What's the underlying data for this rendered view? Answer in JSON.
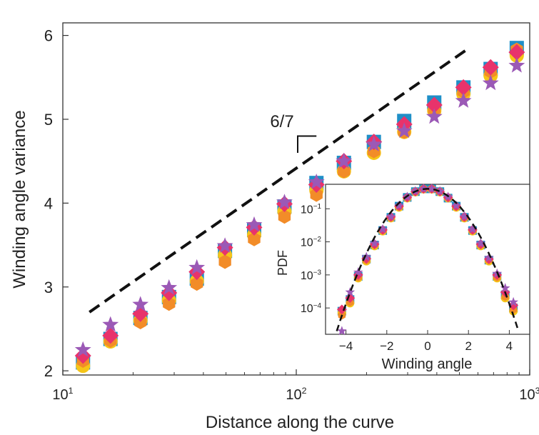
{
  "chart_data": [
    {
      "type": "scatter",
      "xscale": "log",
      "xlim": [
        10,
        1000
      ],
      "ylim": [
        1.95,
        6.15
      ],
      "xlabel": "Distance along the curve",
      "ylabel": "Winding angle variance",
      "xticks": [
        {
          "value": 10,
          "base": "10",
          "exp": "1"
        },
        {
          "value": 100,
          "base": "10",
          "exp": "2"
        },
        {
          "value": 1000,
          "base": "10",
          "exp": "3"
        }
      ],
      "yticks": [
        2,
        3,
        4,
        5,
        6
      ],
      "x": [
        12.2,
        16.0,
        21.5,
        28.5,
        37.5,
        49.5,
        66.0,
        89.0,
        122,
        160,
        215,
        290,
        390,
        520,
        680,
        880
      ],
      "series": [
        {
          "marker": "square",
          "color": "#1f8fc8",
          "values": [
            2.1,
            2.38,
            2.63,
            2.88,
            3.1,
            3.43,
            3.68,
            3.96,
            4.24,
            4.48,
            4.73,
            4.98,
            5.2,
            5.38,
            5.6,
            5.85
          ]
        },
        {
          "marker": "circle",
          "color": "#f5c518",
          "values": [
            2.06,
            2.35,
            2.6,
            2.84,
            3.07,
            3.38,
            3.62,
            3.9,
            4.15,
            4.38,
            4.6,
            4.85,
            5.1,
            5.3,
            5.52,
            5.76
          ]
        },
        {
          "marker": "hexagon",
          "color": "#f28c28",
          "values": [
            2.12,
            2.36,
            2.58,
            2.8,
            3.04,
            3.3,
            3.57,
            3.84,
            4.1,
            4.38,
            4.62,
            4.85,
            5.12,
            5.33,
            5.57,
            5.83
          ]
        },
        {
          "marker": "diamond",
          "color": "#e8336b",
          "values": [
            2.18,
            2.42,
            2.68,
            2.93,
            3.18,
            3.47,
            3.71,
            3.99,
            4.22,
            4.5,
            4.73,
            4.94,
            5.17,
            5.38,
            5.62,
            5.8
          ]
        },
        {
          "marker": "star",
          "color": "#9b59b6",
          "values": [
            2.25,
            2.55,
            2.79,
            2.99,
            3.23,
            3.49,
            3.74,
            4.01,
            4.25,
            4.5,
            4.7,
            4.86,
            5.03,
            5.22,
            5.43,
            5.64
          ]
        }
      ],
      "guide_line": {
        "slope_label": "6/7",
        "x": [
          13,
          550
        ],
        "y": [
          2.7,
          5.85
        ]
      }
    },
    {
      "type": "scatter",
      "yscale": "log",
      "xlim": [
        -5,
        5
      ],
      "ylim": [
        1.6e-05,
        0.55
      ],
      "xlabel": "Winding angle",
      "ylabel": "PDF",
      "xticks": [
        -4,
        -2,
        0,
        2,
        4
      ],
      "yticks": [
        {
          "value": 0.1,
          "base": "10",
          "exp": "−1"
        },
        {
          "value": 0.01,
          "base": "10",
          "exp": "−2"
        },
        {
          "value": 0.001,
          "base": "10",
          "exp": "−3"
        },
        {
          "value": 0.0001,
          "base": "10",
          "exp": "−4"
        }
      ],
      "x": [
        -4.2,
        -3.8,
        -3.4,
        -3.0,
        -2.6,
        -2.2,
        -1.8,
        -1.4,
        -1.0,
        -0.6,
        -0.2,
        0.2,
        0.6,
        1.0,
        1.4,
        1.8,
        2.2,
        2.6,
        3.0,
        3.4,
        3.8,
        4.2
      ],
      "series": [
        {
          "marker": "square",
          "color": "#1f8fc8",
          "values": [
            8e-05,
            0.00018,
            0.0009,
            0.003,
            0.008,
            0.022,
            0.055,
            0.12,
            0.22,
            0.33,
            0.4,
            0.4,
            0.33,
            0.21,
            0.12,
            0.055,
            0.022,
            0.008,
            0.0028,
            0.0009,
            0.00025,
            0.0001
          ]
        },
        {
          "marker": "circle",
          "color": "#f5c518",
          "values": [
            7e-05,
            0.00014,
            0.0008,
            0.0026,
            0.0075,
            0.021,
            0.052,
            0.11,
            0.21,
            0.32,
            0.39,
            0.39,
            0.32,
            0.21,
            0.11,
            0.052,
            0.021,
            0.0075,
            0.0026,
            0.0008,
            0.0002,
            8e-05
          ]
        },
        {
          "marker": "hexagon",
          "color": "#f28c28",
          "values": [
            6e-05,
            0.00015,
            0.00085,
            0.0028,
            0.008,
            0.022,
            0.054,
            0.115,
            0.22,
            0.33,
            0.4,
            0.4,
            0.33,
            0.22,
            0.115,
            0.054,
            0.022,
            0.008,
            0.0028,
            0.00085,
            0.00022,
            9e-05
          ]
        },
        {
          "marker": "diamond",
          "color": "#e8336b",
          "values": [
            9e-05,
            0.0002,
            0.001,
            0.0031,
            0.0085,
            0.023,
            0.057,
            0.12,
            0.22,
            0.33,
            0.4,
            0.4,
            0.33,
            0.22,
            0.12,
            0.057,
            0.023,
            0.0085,
            0.003,
            0.001,
            0.0003,
            0.00012
          ]
        },
        {
          "marker": "star",
          "color": "#9b59b6",
          "values": [
            2e-05,
            0.0003,
            0.0012,
            0.0035,
            0.009,
            0.024,
            0.058,
            0.125,
            0.23,
            0.34,
            0.4,
            0.4,
            0.34,
            0.23,
            0.125,
            0.058,
            0.024,
            0.009,
            0.0033,
            0.0011,
            0.0004,
            0.00015
          ]
        }
      ],
      "fit_curve": {
        "style": "dashed",
        "mean": 0.0,
        "sigma": 1.0,
        "peak": 0.4
      }
    }
  ]
}
